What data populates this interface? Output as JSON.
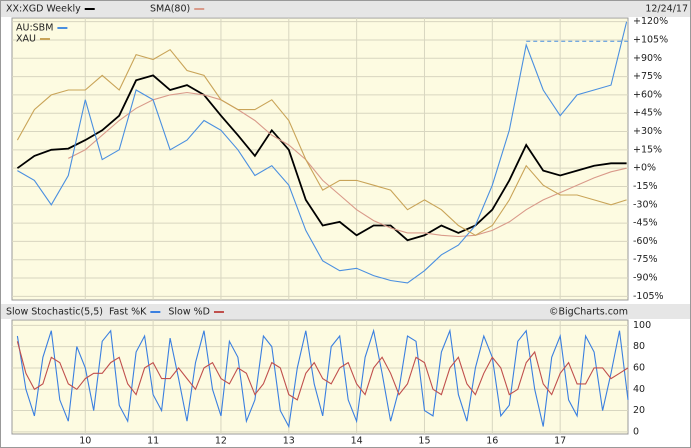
{
  "chart_data": [
    {
      "type": "line",
      "date": "12/24/17",
      "xlim": [
        2008.92,
        2018.0
      ],
      "ylim": [
        -108,
        123
      ],
      "yticks": [
        {
          "value": 120,
          "label": "+120%"
        },
        {
          "value": 105,
          "label": "+105%"
        },
        {
          "value": 90,
          "label": "+90%"
        },
        {
          "value": 75,
          "label": "+75%"
        },
        {
          "value": 60,
          "label": "+60%"
        },
        {
          "value": 45,
          "label": "+45%"
        },
        {
          "value": 30,
          "label": "+30%"
        },
        {
          "value": 15,
          "label": "+15%"
        },
        {
          "value": 0,
          "label": "+0%"
        },
        {
          "value": -15,
          "label": "-15%"
        },
        {
          "value": -30,
          "label": "-30%"
        },
        {
          "value": -45,
          "label": "-45%"
        },
        {
          "value": -60,
          "label": "-60%"
        },
        {
          "value": -75,
          "label": "-75%"
        },
        {
          "value": -90,
          "label": "-90%"
        },
        {
          "value": -105,
          "label": "-105%"
        }
      ],
      "grid": true,
      "x": [
        2009,
        2009.25,
        2009.5,
        2009.75,
        2010,
        2010.25,
        2010.5,
        2010.75,
        2011,
        2011.25,
        2011.5,
        2011.75,
        2012,
        2012.25,
        2012.5,
        2012.75,
        2013,
        2013.25,
        2013.5,
        2013.75,
        2014,
        2014.25,
        2014.5,
        2014.75,
        2015,
        2015.25,
        2015.5,
        2015.75,
        2016,
        2016.25,
        2016.5,
        2016.75,
        2017,
        2017.25,
        2017.5,
        2017.75,
        2017.98
      ],
      "series": [
        {
          "name": "XX:XGD Weekly",
          "color": "#000000",
          "values": [
            0,
            10,
            15,
            16,
            23,
            31,
            43,
            72,
            76,
            64,
            68,
            60,
            43,
            27,
            10,
            31,
            15,
            -26,
            -47,
            -44,
            -55,
            -47,
            -47,
            -59,
            -55,
            -47,
            -53,
            -47,
            -34,
            -10,
            19,
            -2,
            -6,
            -2,
            2,
            4,
            4
          ]
        },
        {
          "name": "SMA(80)",
          "color": "#d99a8a",
          "values": [
            null,
            null,
            null,
            8,
            15,
            27,
            39,
            49,
            56,
            60,
            62,
            60,
            56,
            48,
            39,
            27,
            19,
            7,
            -10,
            -22,
            -34,
            -43,
            -49,
            -53,
            -53,
            -55,
            -56,
            -55,
            -51,
            -44,
            -34,
            -26,
            -20,
            -14,
            -8,
            -3,
            0
          ]
        },
        {
          "name": "AU:SBM",
          "color": "#4a8fe0",
          "values": [
            -2,
            -10,
            -30,
            -6,
            56,
            7,
            15,
            64,
            56,
            15,
            23,
            39,
            31,
            15,
            -6,
            2,
            -14,
            -51,
            -76,
            -84,
            -82,
            -88,
            -92,
            -94,
            -84,
            -71,
            -63,
            -47,
            -14,
            31,
            101,
            64,
            43,
            60,
            64,
            68,
            120
          ]
        },
        {
          "name": "XAU",
          "color": "#c9a458",
          "values": [
            23,
            48,
            60,
            64,
            64,
            76,
            64,
            93,
            89,
            97,
            80,
            76,
            56,
            48,
            48,
            56,
            39,
            7,
            -18,
            -10,
            -10,
            -14,
            -18,
            -34,
            -26,
            -34,
            -47,
            -55,
            -47,
            -26,
            2,
            -14,
            -22,
            -22,
            -26,
            -30,
            -26
          ]
        }
      ],
      "reference_line": {
        "value": 104,
        "from": 2016.5,
        "color": "#4a8fe0"
      }
    },
    {
      "type": "line",
      "title": "Slow Stochastic(5,5)",
      "credit": "©BigCharts.com",
      "xlim": [
        2008.92,
        2018.0
      ],
      "ylim": [
        -2,
        105
      ],
      "yticks": [
        0,
        20,
        40,
        60,
        80,
        100
      ],
      "xticks": [
        {
          "value": 2010,
          "label": "10"
        },
        {
          "value": 2011,
          "label": "11"
        },
        {
          "value": 2012,
          "label": "12"
        },
        {
          "value": 2013,
          "label": "13"
        },
        {
          "value": 2014,
          "label": "14"
        },
        {
          "value": 2015,
          "label": "15"
        },
        {
          "value": 2016,
          "label": "16"
        },
        {
          "value": 2017,
          "label": "17"
        }
      ],
      "grid": true,
      "x": [
        2009,
        2009.125,
        2009.25,
        2009.375,
        2009.5,
        2009.625,
        2009.75,
        2009.875,
        2010,
        2010.125,
        2010.25,
        2010.375,
        2010.5,
        2010.625,
        2010.75,
        2010.875,
        2011,
        2011.125,
        2011.25,
        2011.375,
        2011.5,
        2011.625,
        2011.75,
        2011.875,
        2012,
        2012.125,
        2012.25,
        2012.375,
        2012.5,
        2012.625,
        2012.75,
        2012.875,
        2013,
        2013.125,
        2013.25,
        2013.375,
        2013.5,
        2013.625,
        2013.75,
        2013.875,
        2014,
        2014.125,
        2014.25,
        2014.375,
        2014.5,
        2014.625,
        2014.75,
        2014.875,
        2015,
        2015.125,
        2015.25,
        2015.375,
        2015.5,
        2015.625,
        2015.75,
        2015.875,
        2016,
        2016.125,
        2016.25,
        2016.375,
        2016.5,
        2016.625,
        2016.75,
        2016.875,
        2017,
        2017.125,
        2017.25,
        2017.375,
        2017.5,
        2017.625,
        2017.75,
        2017.875,
        2018
      ],
      "series": [
        {
          "name": "Fast %K",
          "color": "#3a7fe0",
          "values": [
            90,
            40,
            15,
            70,
            95,
            30,
            10,
            80,
            60,
            20,
            85,
            95,
            25,
            10,
            75,
            90,
            35,
            20,
            88,
            50,
            10,
            65,
            95,
            40,
            15,
            85,
            70,
            10,
            30,
            90,
            80,
            20,
            5,
            60,
            95,
            45,
            15,
            80,
            90,
            30,
            10,
            70,
            95,
            55,
            10,
            40,
            90,
            85,
            20,
            15,
            75,
            95,
            35,
            10,
            60,
            90,
            70,
            15,
            25,
            85,
            95,
            40,
            5,
            70,
            90,
            30,
            15,
            90,
            75,
            20,
            55,
            95,
            30
          ]
        },
        {
          "name": "Slow %D",
          "color": "#c0504d",
          "values": [
            85,
            55,
            40,
            45,
            70,
            65,
            45,
            40,
            50,
            55,
            55,
            65,
            70,
            45,
            35,
            60,
            65,
            50,
            50,
            60,
            50,
            40,
            60,
            65,
            50,
            45,
            60,
            55,
            35,
            45,
            65,
            60,
            35,
            30,
            55,
            65,
            50,
            45,
            60,
            65,
            45,
            35,
            60,
            70,
            55,
            35,
            45,
            70,
            65,
            40,
            35,
            60,
            70,
            45,
            35,
            55,
            70,
            60,
            35,
            40,
            65,
            75,
            45,
            35,
            55,
            65,
            45,
            45,
            60,
            60,
            50,
            55,
            60
          ]
        }
      ]
    }
  ]
}
